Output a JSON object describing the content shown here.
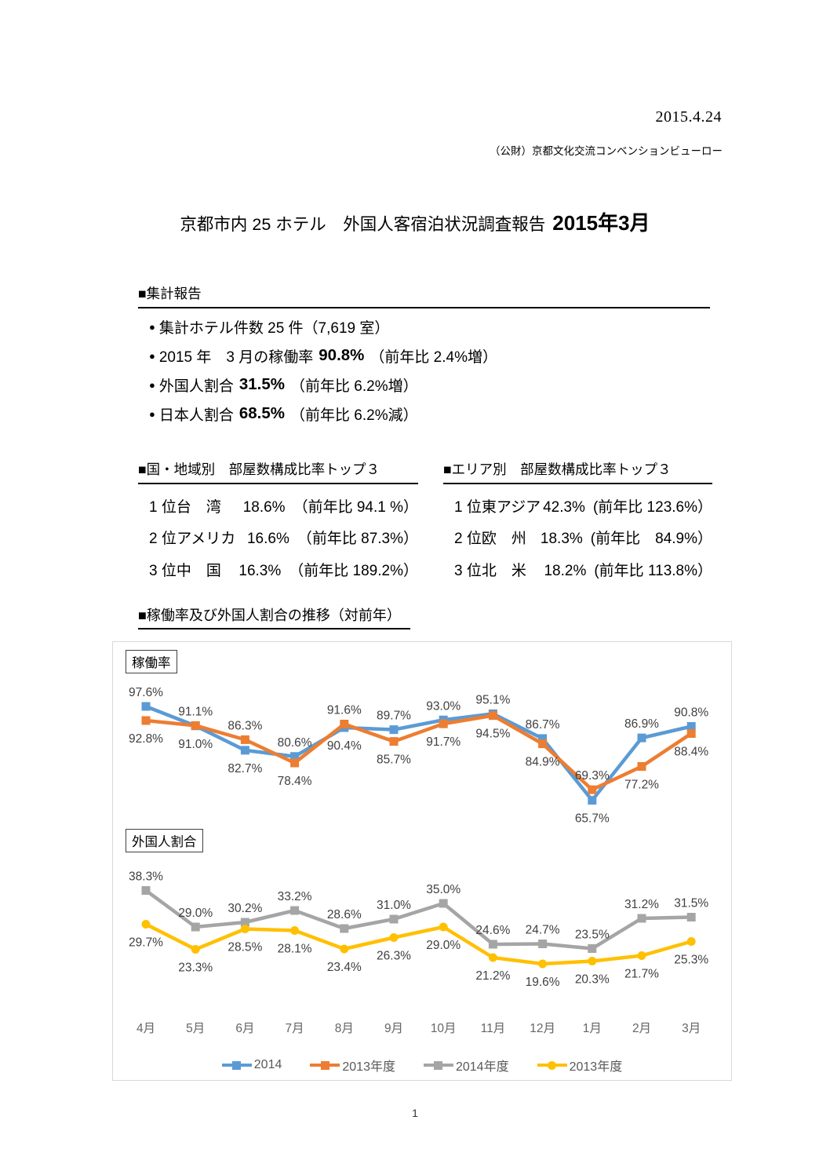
{
  "page": {
    "date": "2015.4.24",
    "org": "（公財）京都文化交流コンベンションビューロー",
    "title_main": "京都市内 25 ホテル　外国人客宿泊状況調査報告",
    "title_bold": "2015年3月",
    "page_number": "1"
  },
  "summary": {
    "heading": "■集計報告",
    "items": [
      {
        "bullet": "●",
        "pre": "集計ホテル件数 25 件（7,619 室）",
        "strong": "",
        "post": ""
      },
      {
        "bullet": "●",
        "pre": "2015 年　3 月の稼働率",
        "strong": "90.8%",
        "post": "（前年比 2.4%増）"
      },
      {
        "bullet": "●",
        "pre": "外国人割合",
        "strong": "31.5%",
        "post": "（前年比 6.2%増）"
      },
      {
        "bullet": "●",
        "pre": "日本人割合",
        "strong": "68.5%",
        "post": "（前年比 6.2%減）"
      }
    ]
  },
  "rankings": [
    {
      "heading": "■国・地域別　部屋数構成比率トップ３",
      "rows": [
        {
          "rank": "1 位",
          "name": "台　湾",
          "value": "18.6%",
          "yoy": "（前年比 94.1 %）"
        },
        {
          "rank": "2 位",
          "name": "アメリカ",
          "value": "16.6%",
          "yoy": "（前年比 87.3%）"
        },
        {
          "rank": "3 位",
          "name": "中　国",
          "value": "16.3%",
          "yoy": "（前年比 189.2%）"
        }
      ]
    },
    {
      "heading": "■エリア別　部屋数構成比率トップ３",
      "rows": [
        {
          "rank": "1 位",
          "name": "東アジア",
          "value": "42.3%",
          "yoy": "(前年比 123.6%）"
        },
        {
          "rank": "2 位",
          "name": "欧　州",
          "value": "18.3%",
          "yoy": "(前年比　84.9%）"
        },
        {
          "rank": "3 位",
          "name": "北　米",
          "value": "18.2%",
          "yoy": "(前年比 113.8%）"
        }
      ]
    }
  ],
  "trend": {
    "heading": "■稼働率及び外国人割合の推移（対前年）"
  },
  "chart_data": {
    "type": "line",
    "categories": [
      "4月",
      "5月",
      "6月",
      "7月",
      "8月",
      "9月",
      "10月",
      "11月",
      "12月",
      "1月",
      "2月",
      "3月"
    ],
    "subcharts": [
      {
        "label": "稼働率",
        "ylim": [
          60,
          100
        ],
        "series": [
          {
            "name": "2014",
            "color": "#5B9BD5",
            "marker": "square",
            "values": [
              97.6,
              91.0,
              82.7,
              80.6,
              90.4,
              89.7,
              93.0,
              95.1,
              86.7,
              65.7,
              86.9,
              90.8
            ]
          },
          {
            "name": "2013年度",
            "color": "#ED7D31",
            "marker": "square",
            "values": [
              92.8,
              91.1,
              86.3,
              78.4,
              91.6,
              85.7,
              91.7,
              94.5,
              84.9,
              69.3,
              77.2,
              88.4
            ]
          }
        ]
      },
      {
        "label": "外国人割合",
        "ylim": [
          15,
          40
        ],
        "series": [
          {
            "name": "2014年度",
            "color": "#A5A5A5",
            "marker": "square",
            "values": [
              38.3,
              29.0,
              30.2,
              33.2,
              28.6,
              31.0,
              35.0,
              24.6,
              24.7,
              23.5,
              31.2,
              31.5
            ]
          },
          {
            "name": "2013年度",
            "color": "#FFC000",
            "marker": "circle",
            "values": [
              29.7,
              23.3,
              28.5,
              28.1,
              23.4,
              26.3,
              29.0,
              21.2,
              19.6,
              20.3,
              21.7,
              25.3
            ]
          }
        ]
      }
    ],
    "legend": [
      {
        "label": "2014",
        "color": "#5B9BD5",
        "marker": "square"
      },
      {
        "label": "2013年度",
        "color": "#ED7D31",
        "marker": "square"
      },
      {
        "label": "2014年度",
        "color": "#A5A5A5",
        "marker": "square"
      },
      {
        "label": "2013年度",
        "color": "#FFC000",
        "marker": "circle"
      }
    ],
    "label_color": "#404040",
    "axis_label_color": "#666666",
    "grid": false,
    "legend_position": "bottom"
  }
}
